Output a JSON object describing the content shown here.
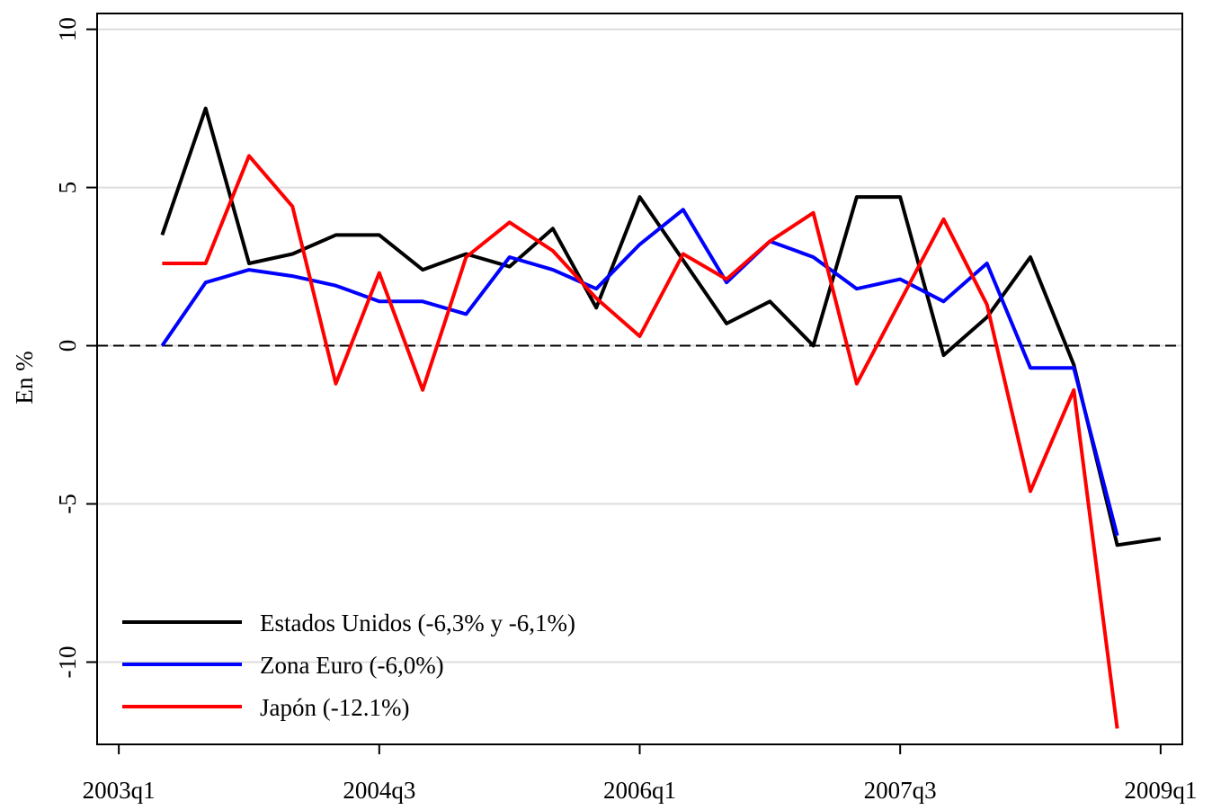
{
  "chart_data": {
    "type": "line",
    "y_label": "En %",
    "x": [
      1,
      2,
      3,
      4,
      5,
      6,
      7,
      8,
      9,
      10,
      11,
      12,
      13,
      14,
      15,
      16,
      17,
      18,
      19,
      20,
      21,
      22,
      23,
      24
    ],
    "xlim": [
      -0.5,
      24.5
    ],
    "xticks": [
      {
        "value": 0,
        "label": "2003q1"
      },
      {
        "value": 6,
        "label": "2004q3"
      },
      {
        "value": 12,
        "label": "2006q1"
      },
      {
        "value": 18,
        "label": "2007q3"
      },
      {
        "value": 24,
        "label": "2009q1"
      }
    ],
    "ylim": [
      -12.6,
      10.5
    ],
    "yticks": [
      10,
      5,
      0,
      -5,
      -10
    ],
    "grid": true,
    "reference_line": 0,
    "legend": "lower-left",
    "series": [
      {
        "name": "Estados Unidos (-6,3% y -6,1%)",
        "color": "#000000",
        "values": [
          3.5,
          7.5,
          2.6,
          2.9,
          3.5,
          3.5,
          2.4,
          2.9,
          2.5,
          3.7,
          1.2,
          4.7,
          2.7,
          0.7,
          1.4,
          0.0,
          4.7,
          4.7,
          -0.3,
          0.9,
          2.8,
          -0.6,
          -6.3,
          -6.1
        ]
      },
      {
        "name": "Zona Euro (-6,0%)",
        "color": "#0000ff",
        "values": [
          0.0,
          2.0,
          2.4,
          2.2,
          1.9,
          1.4,
          1.4,
          1.0,
          2.8,
          2.4,
          1.8,
          3.2,
          4.3,
          2.0,
          3.3,
          2.8,
          1.8,
          2.1,
          1.4,
          2.6,
          -0.7,
          -0.7,
          -6.0,
          null
        ]
      },
      {
        "name": "Japón (-12.1%)",
        "color": "#ff0000",
        "values": [
          2.6,
          2.6,
          6.0,
          4.4,
          -1.2,
          2.3,
          -1.4,
          2.8,
          3.9,
          3.0,
          1.5,
          0.3,
          2.9,
          2.1,
          3.3,
          4.2,
          -1.2,
          1.4,
          4.0,
          1.3,
          -4.6,
          -1.4,
          -12.1,
          null
        ]
      }
    ]
  }
}
